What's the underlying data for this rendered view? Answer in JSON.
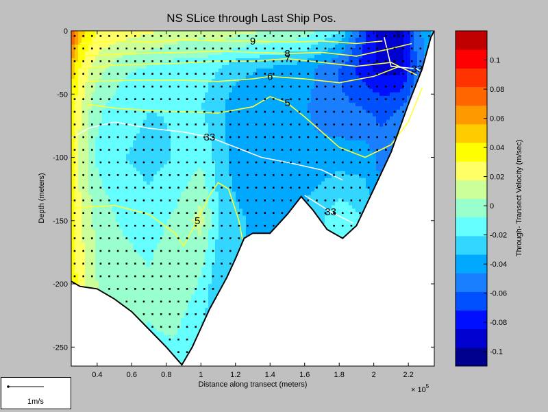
{
  "chart_data": {
    "type": "heatmap",
    "title": "NS SLice through Last Ship Pos.",
    "xlabel": "Distance along transect (meters)",
    "x_exponent": "× 10",
    "x_exponent_power": "5",
    "ylabel": "Depth (meters)",
    "xlim": [
      0.25,
      2.35
    ],
    "ylim": [
      -265,
      0
    ],
    "x_ticks": [
      {
        "value": 0.4,
        "label": "0.4"
      },
      {
        "value": 0.6,
        "label": "0.6"
      },
      {
        "value": 0.8,
        "label": "0.8"
      },
      {
        "value": 1.0,
        "label": "1"
      },
      {
        "value": 1.2,
        "label": "1.2"
      },
      {
        "value": 1.4,
        "label": "1.4"
      },
      {
        "value": 1.6,
        "label": "1.6"
      },
      {
        "value": 1.8,
        "label": "1.8"
      },
      {
        "value": 2.0,
        "label": "2"
      },
      {
        "value": 2.2,
        "label": "2.2"
      }
    ],
    "y_ticks": [
      {
        "value": 0,
        "label": "0"
      },
      {
        "value": -50,
        "label": "-50"
      },
      {
        "value": -100,
        "label": "-100"
      },
      {
        "value": -150,
        "label": "-150"
      },
      {
        "value": -200,
        "label": "-200"
      },
      {
        "value": -250,
        "label": "-250"
      }
    ],
    "bottom_profile": [
      [
        0.25,
        -198
      ],
      [
        0.3,
        -202
      ],
      [
        0.4,
        -204
      ],
      [
        0.5,
        -212
      ],
      [
        0.6,
        -222
      ],
      [
        0.7,
        -236
      ],
      [
        0.8,
        -250
      ],
      [
        0.89,
        -264
      ],
      [
        0.95,
        -250
      ],
      [
        1.05,
        -220
      ],
      [
        1.15,
        -195
      ],
      [
        1.2,
        -180
      ],
      [
        1.25,
        -164
      ],
      [
        1.3,
        -160
      ],
      [
        1.4,
        -160
      ],
      [
        1.5,
        -145
      ],
      [
        1.58,
        -131
      ],
      [
        1.65,
        -142
      ],
      [
        1.73,
        -157
      ],
      [
        1.82,
        -164
      ],
      [
        1.9,
        -154
      ],
      [
        2.0,
        -125
      ],
      [
        2.1,
        -96
      ],
      [
        2.2,
        -58
      ],
      [
        2.28,
        -30
      ],
      [
        2.33,
        -5
      ],
      [
        2.35,
        0
      ]
    ],
    "velocity_field": [
      {
        "x": 0.25,
        "depths": [
          0,
          -30,
          -60,
          -100,
          -150,
          -200
        ],
        "v": [
          0.09,
          0.05,
          0.04,
          0.035,
          0.04,
          0.04
        ]
      },
      {
        "x": 0.3,
        "depths": [
          0,
          -30,
          -60,
          -100,
          -150,
          -200
        ],
        "v": [
          0.05,
          0.03,
          0.02,
          0.015,
          0.02,
          0.025
        ]
      },
      {
        "x": 0.4,
        "depths": [
          0,
          -30,
          -60,
          -100,
          -150,
          -200
        ],
        "v": [
          0.03,
          0.01,
          -0.005,
          -0.01,
          0.0,
          0.005
        ]
      },
      {
        "x": 0.55,
        "depths": [
          0,
          -30,
          -60,
          -100,
          -150,
          -200
        ],
        "v": [
          0.025,
          -0.005,
          -0.015,
          -0.02,
          -0.01,
          0.0
        ]
      },
      {
        "x": 0.7,
        "depths": [
          0,
          -30,
          -60,
          -100,
          -150,
          -200,
          -250
        ],
        "v": [
          0.02,
          -0.01,
          -0.02,
          -0.025,
          -0.015,
          -0.005,
          -0.01
        ]
      },
      {
        "x": 0.85,
        "depths": [
          0,
          -30,
          -60,
          -100,
          -150,
          -200,
          -250
        ],
        "v": [
          0.015,
          -0.015,
          -0.02,
          -0.02,
          -0.005,
          0.005,
          -0.01
        ]
      },
      {
        "x": 1.0,
        "depths": [
          0,
          -30,
          -60,
          -100,
          -150,
          -200,
          -250
        ],
        "v": [
          0.01,
          -0.015,
          -0.02,
          -0.01,
          0.01,
          -0.01,
          -0.025
        ]
      },
      {
        "x": 1.1,
        "depths": [
          0,
          -30,
          -60,
          -100,
          -150,
          -200
        ],
        "v": [
          0.015,
          -0.02,
          -0.03,
          -0.025,
          -0.02,
          -0.03
        ]
      },
      {
        "x": 1.2,
        "depths": [
          0,
          -30,
          -60,
          -100,
          -150
        ],
        "v": [
          0.01,
          -0.03,
          -0.04,
          -0.04,
          -0.03
        ]
      },
      {
        "x": 1.4,
        "depths": [
          0,
          -30,
          -60,
          -100,
          -150
        ],
        "v": [
          0.005,
          -0.035,
          -0.04,
          -0.045,
          -0.04
        ]
      },
      {
        "x": 1.6,
        "depths": [
          0,
          -30,
          -60,
          -100,
          -130
        ],
        "v": [
          0.0,
          -0.04,
          -0.045,
          -0.045,
          -0.035
        ]
      },
      {
        "x": 1.8,
        "depths": [
          0,
          -30,
          -60,
          -100,
          -150
        ],
        "v": [
          -0.02,
          -0.06,
          -0.055,
          -0.04,
          -0.01
        ]
      },
      {
        "x": 1.95,
        "depths": [
          0,
          -30,
          -60,
          -100,
          -150
        ],
        "v": [
          -0.07,
          -0.08,
          -0.06,
          -0.04,
          -0.02
        ]
      },
      {
        "x": 2.05,
        "depths": [
          0,
          -30,
          -60,
          -100
        ],
        "v": [
          -0.09,
          -0.09,
          -0.065,
          -0.05
        ]
      },
      {
        "x": 2.15,
        "depths": [
          0,
          -30,
          -60,
          -80
        ],
        "v": [
          -0.1,
          -0.09,
          -0.06,
          -0.05
        ]
      },
      {
        "x": 2.25,
        "depths": [
          0,
          -30,
          -45
        ],
        "v": [
          -0.05,
          -0.06,
          -0.05
        ]
      },
      {
        "x": 2.33,
        "depths": [
          0,
          -10
        ],
        "v": [
          -0.03,
          -0.04
        ]
      }
    ],
    "contours": [
      {
        "label": "9",
        "color": "#ffff33",
        "points": [
          [
            0.3,
            -10
          ],
          [
            0.5,
            -8
          ],
          [
            0.7,
            -9
          ],
          [
            0.9,
            -7
          ],
          [
            1.1,
            -8
          ],
          [
            1.3,
            -8
          ],
          [
            1.5,
            -9
          ],
          [
            1.7,
            -8
          ],
          [
            1.9,
            -10
          ],
          [
            2.05,
            -8
          ]
        ]
      },
      {
        "label": "8",
        "color": "#ffff33",
        "points": [
          [
            0.3,
            -20
          ],
          [
            0.6,
            -18
          ],
          [
            0.9,
            -17
          ],
          [
            1.1,
            -16
          ],
          [
            1.3,
            -17
          ],
          [
            1.5,
            -18
          ],
          [
            1.7,
            -17
          ],
          [
            1.9,
            -20
          ],
          [
            2.1,
            -14
          ],
          [
            2.22,
            -10
          ]
        ]
      },
      {
        "label": "7",
        "color": "#ffff33",
        "points": [
          [
            0.32,
            -30
          ],
          [
            0.5,
            -27
          ],
          [
            0.8,
            -26
          ],
          [
            1.1,
            -24
          ],
          [
            1.3,
            -24
          ],
          [
            1.5,
            -22
          ],
          [
            1.7,
            -25
          ],
          [
            1.9,
            -28
          ],
          [
            2.1,
            -25
          ],
          [
            2.25,
            -35
          ]
        ]
      },
      {
        "label": "6",
        "color": "#ffff33",
        "points": [
          [
            0.35,
            -40
          ],
          [
            0.6,
            -39
          ],
          [
            0.9,
            -39
          ],
          [
            1.1,
            -40
          ],
          [
            1.3,
            -38
          ],
          [
            1.4,
            -36
          ],
          [
            1.6,
            -38
          ],
          [
            1.8,
            -41
          ],
          [
            2.0,
            -36
          ],
          [
            2.15,
            -28
          ]
        ]
      },
      {
        "label": "5",
        "color": "#ffff33",
        "points": [
          [
            0.34,
            -58
          ],
          [
            0.5,
            -61
          ],
          [
            0.7,
            -63
          ],
          [
            0.9,
            -64
          ],
          [
            1.1,
            -65
          ],
          [
            1.3,
            -60
          ],
          [
            1.4,
            -52
          ],
          [
            1.5,
            -57
          ],
          [
            1.6,
            -68
          ],
          [
            1.7,
            -80
          ],
          [
            1.8,
            -92
          ],
          [
            1.95,
            -100
          ],
          [
            2.1,
            -90
          ],
          [
            2.2,
            -72
          ],
          [
            2.28,
            -45
          ]
        ]
      },
      {
        "label": "5",
        "color": "#ffff33",
        "points": [
          [
            0.27,
            -140
          ],
          [
            0.5,
            -138
          ],
          [
            0.7,
            -145
          ],
          [
            0.85,
            -160
          ],
          [
            0.9,
            -170
          ],
          [
            0.98,
            -150
          ],
          [
            1.05,
            -130
          ],
          [
            1.1,
            -120
          ],
          [
            1.16,
            -125
          ],
          [
            1.22,
            -150
          ],
          [
            1.24,
            -165
          ]
        ]
      },
      {
        "label": "33",
        "color": "#ffffff",
        "points": [
          [
            0.25,
            -85
          ],
          [
            0.35,
            -77
          ],
          [
            0.5,
            -72
          ],
          [
            0.7,
            -77
          ],
          [
            0.9,
            -80
          ],
          [
            1.05,
            -84
          ],
          [
            1.2,
            -92
          ],
          [
            1.35,
            -100
          ],
          [
            1.5,
            -104
          ],
          [
            1.7,
            -110
          ],
          [
            1.82,
            -118
          ]
        ]
      },
      {
        "label": "33",
        "color": "#ffffff",
        "points": [
          [
            1.6,
            -130
          ],
          [
            1.75,
            -143
          ],
          [
            1.88,
            -152
          ]
        ]
      },
      {
        "label": "33",
        "color": "#ffffff",
        "points": [
          [
            2.06,
            -5
          ],
          [
            2.1,
            -28
          ],
          [
            2.25,
            -30
          ],
          [
            2.3,
            -36
          ]
        ]
      }
    ],
    "colorbar": {
      "label": "Through- Transect Velocity (m/sec)",
      "range": [
        -0.11,
        0.12
      ],
      "ticks": [
        {
          "value": 0.1,
          "label": "0.1"
        },
        {
          "value": 0.08,
          "label": "0.08"
        },
        {
          "value": 0.06,
          "label": "0.06"
        },
        {
          "value": 0.04,
          "label": "0.04"
        },
        {
          "value": 0.02,
          "label": "0.02"
        },
        {
          "value": 0.0,
          "label": "0"
        },
        {
          "value": -0.02,
          "label": "-0.02"
        },
        {
          "value": -0.04,
          "label": "-0.04"
        },
        {
          "value": -0.06,
          "label": "-0.06"
        },
        {
          "value": -0.08,
          "label": "-0.08"
        },
        {
          "value": -0.1,
          "label": "-0.1"
        }
      ],
      "colors": [
        "#00008f",
        "#0000cf",
        "#0010ff",
        "#0050ff",
        "#1a7fff",
        "#00a8ff",
        "#33d6ff",
        "#66ffff",
        "#99ffcc",
        "#ccff99",
        "#ffff66",
        "#ffff00",
        "#ffcc00",
        "#ff9900",
        "#ff6600",
        "#ff3300",
        "#ff0000",
        "#c00000"
      ]
    },
    "scale_legend": {
      "label": "1m/s"
    }
  }
}
